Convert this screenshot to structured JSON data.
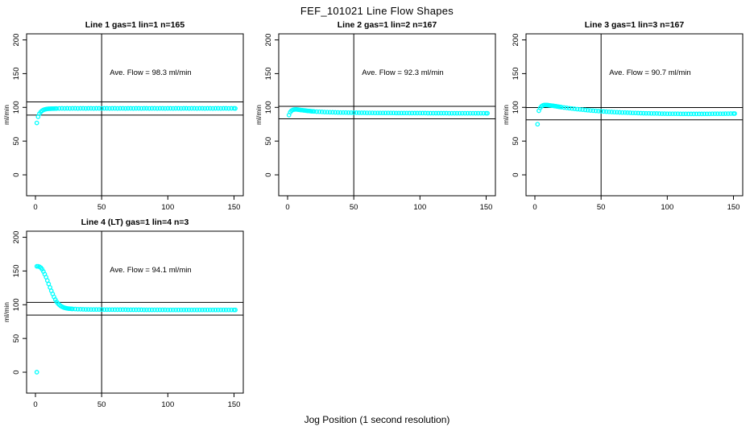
{
  "page_title": "FEF_101021  Line Flow Shapes",
  "x_axis_label": "Jog Position (1 second resolution)",
  "colors": {
    "point_color": "#00ffff",
    "axis_color": "#000000",
    "background": "#ffffff"
  },
  "chart_data": [
    {
      "type": "scatter",
      "id": "line1",
      "title": "Line 1 gas=1 lin=1 n=165",
      "annotation": "Ave. Flow =  98.3  ml/min",
      "ave_flow_ml_min": 98.3,
      "ylabel": "ml/min",
      "x_ticks": [
        0,
        50,
        100,
        150
      ],
      "y_ticks": [
        0,
        50,
        100,
        150,
        200
      ],
      "xlim": [
        -6.7,
        157
      ],
      "ylim": [
        -31,
        209
      ],
      "vline_x": 50,
      "hlines": [
        108.1,
        88.5
      ],
      "grid": false,
      "points": [
        [
          1,
          77
        ],
        [
          2,
          86
        ],
        [
          3,
          90.5
        ],
        [
          4,
          93.2
        ],
        [
          5,
          95
        ],
        [
          6,
          96.2
        ],
        [
          7,
          96.9
        ],
        [
          8,
          97.4
        ],
        [
          9,
          97.7
        ],
        [
          10,
          97.9
        ],
        [
          11,
          98
        ],
        [
          12,
          98.1
        ],
        [
          13,
          98.2
        ],
        [
          14,
          98.2
        ],
        [
          15,
          98.3
        ],
        [
          16,
          98.3
        ],
        [
          18,
          98.4
        ],
        [
          20,
          98.5
        ],
        [
          22,
          98.4
        ],
        [
          24,
          98.5
        ],
        [
          26,
          98.4
        ],
        [
          28,
          98.5
        ],
        [
          30,
          98.5
        ],
        [
          32,
          98.4
        ],
        [
          34,
          98.5
        ],
        [
          36,
          98.5
        ],
        [
          38,
          98.4
        ],
        [
          40,
          98.5
        ],
        [
          42,
          98.5
        ],
        [
          44,
          98.4
        ],
        [
          46,
          98.5
        ],
        [
          48,
          98.5
        ],
        [
          50,
          98.4
        ],
        [
          52,
          98.5
        ],
        [
          54,
          98.5
        ],
        [
          56,
          98.4
        ],
        [
          58,
          98.5
        ],
        [
          60,
          98.5
        ],
        [
          62,
          98.4
        ],
        [
          64,
          98.5
        ],
        [
          66,
          98.5
        ],
        [
          68,
          98.4
        ],
        [
          70,
          98.5
        ],
        [
          72,
          98.5
        ],
        [
          74,
          98.4
        ],
        [
          76,
          98.5
        ],
        [
          78,
          98.5
        ],
        [
          80,
          98.4
        ],
        [
          82,
          98.5
        ],
        [
          84,
          98.5
        ],
        [
          86,
          98.4
        ],
        [
          88,
          98.5
        ],
        [
          90,
          98.5
        ],
        [
          92,
          98.4
        ],
        [
          94,
          98.5
        ],
        [
          96,
          98.5
        ],
        [
          98,
          98.4
        ],
        [
          100,
          98.5
        ],
        [
          102,
          98.5
        ],
        [
          104,
          98.4
        ],
        [
          106,
          98.5
        ],
        [
          108,
          98.5
        ],
        [
          110,
          98.4
        ],
        [
          112,
          98.5
        ],
        [
          114,
          98.5
        ],
        [
          116,
          98.4
        ],
        [
          118,
          98.5
        ],
        [
          120,
          98.5
        ],
        [
          122,
          98.4
        ],
        [
          124,
          98.5
        ],
        [
          126,
          98.5
        ],
        [
          128,
          98.4
        ],
        [
          130,
          98.5
        ],
        [
          132,
          98.5
        ],
        [
          134,
          98.4
        ],
        [
          136,
          98.5
        ],
        [
          138,
          98.5
        ],
        [
          140,
          98.4
        ],
        [
          142,
          98.5
        ],
        [
          144,
          98.5
        ],
        [
          146,
          98.4
        ],
        [
          148,
          98.5
        ],
        [
          150,
          98.5
        ],
        [
          151,
          98.4
        ]
      ]
    },
    {
      "type": "scatter",
      "id": "line2",
      "title": "Line 2 gas=1 lin=2 n=167",
      "annotation": "Ave. Flow =  92.3  ml/min",
      "ave_flow_ml_min": 92.3,
      "ylabel": "ml/min",
      "x_ticks": [
        0,
        50,
        100,
        150
      ],
      "y_ticks": [
        0,
        50,
        100,
        150,
        200
      ],
      "xlim": [
        -6.7,
        157
      ],
      "ylim": [
        -31,
        209
      ],
      "vline_x": 50,
      "hlines": [
        101.5,
        83.1
      ],
      "grid": false,
      "points": [
        [
          1,
          88.5
        ],
        [
          2,
          93
        ],
        [
          3,
          95.2
        ],
        [
          4,
          96.3
        ],
        [
          5,
          96.8
        ],
        [
          6,
          97
        ],
        [
          7,
          96.9
        ],
        [
          8,
          96.7
        ],
        [
          9,
          96.4
        ],
        [
          10,
          96.1
        ],
        [
          11,
          95.9
        ],
        [
          12,
          95.6
        ],
        [
          13,
          95.4
        ],
        [
          14,
          95.1
        ],
        [
          15,
          94.9
        ],
        [
          16,
          94.7
        ],
        [
          17,
          94.5
        ],
        [
          18,
          94.3
        ],
        [
          19,
          94.1
        ],
        [
          20,
          94
        ],
        [
          22,
          93.7
        ],
        [
          24,
          93.5
        ],
        [
          26,
          93.3
        ],
        [
          28,
          93.1
        ],
        [
          30,
          93
        ],
        [
          32,
          92.8
        ],
        [
          34,
          92.7
        ],
        [
          36,
          92.6
        ],
        [
          38,
          92.5
        ],
        [
          40,
          92.4
        ],
        [
          42,
          92.3
        ],
        [
          44,
          92.3
        ],
        [
          46,
          92.2
        ],
        [
          48,
          92.2
        ],
        [
          50,
          92.1
        ],
        [
          52,
          92.1
        ],
        [
          54,
          92
        ],
        [
          56,
          92
        ],
        [
          58,
          92
        ],
        [
          60,
          91.9
        ],
        [
          62,
          91.9
        ],
        [
          64,
          91.9
        ],
        [
          66,
          91.8
        ],
        [
          68,
          91.8
        ],
        [
          70,
          91.8
        ],
        [
          72,
          91.8
        ],
        [
          74,
          91.7
        ],
        [
          76,
          91.7
        ],
        [
          78,
          91.7
        ],
        [
          80,
          91.7
        ],
        [
          82,
          91.6
        ],
        [
          84,
          91.6
        ],
        [
          86,
          91.6
        ],
        [
          88,
          91.6
        ],
        [
          90,
          91.6
        ],
        [
          92,
          91.5
        ],
        [
          94,
          91.5
        ],
        [
          96,
          91.5
        ],
        [
          98,
          91.5
        ],
        [
          100,
          91.5
        ],
        [
          102,
          91.5
        ],
        [
          104,
          91.5
        ],
        [
          106,
          91.4
        ],
        [
          108,
          91.4
        ],
        [
          110,
          91.4
        ],
        [
          112,
          91.4
        ],
        [
          114,
          91.4
        ],
        [
          116,
          91.4
        ],
        [
          118,
          91.4
        ],
        [
          120,
          91.4
        ],
        [
          122,
          91.3
        ],
        [
          124,
          91.3
        ],
        [
          126,
          91.3
        ],
        [
          128,
          91.3
        ],
        [
          130,
          91.3
        ],
        [
          132,
          91.3
        ],
        [
          134,
          91.3
        ],
        [
          136,
          91.3
        ],
        [
          138,
          91.3
        ],
        [
          140,
          91.3
        ],
        [
          142,
          91.3
        ],
        [
          144,
          91.3
        ],
        [
          146,
          91.3
        ],
        [
          148,
          91.3
        ],
        [
          150,
          91.3
        ],
        [
          151,
          91.3
        ]
      ]
    },
    {
      "type": "scatter",
      "id": "line3",
      "title": "Line 3 gas=1 lin=3 n=167",
      "annotation": "Ave. Flow =  90.7  ml/min",
      "ave_flow_ml_min": 90.7,
      "ylabel": "ml/min",
      "x_ticks": [
        0,
        50,
        100,
        150
      ],
      "y_ticks": [
        0,
        50,
        100,
        150,
        200
      ],
      "xlim": [
        -6.7,
        157
      ],
      "ylim": [
        -31,
        209
      ],
      "vline_x": 50,
      "hlines": [
        99.8,
        81.6
      ],
      "grid": false,
      "points": [
        [
          2,
          75
        ],
        [
          3,
          95
        ],
        [
          4,
          99.2
        ],
        [
          5,
          101.5
        ],
        [
          6,
          102.8
        ],
        [
          7,
          103.4
        ],
        [
          8,
          103.6
        ],
        [
          9,
          103.5
        ],
        [
          10,
          103.3
        ],
        [
          11,
          103
        ],
        [
          12,
          102.7
        ],
        [
          13,
          102.5
        ],
        [
          14,
          102.2
        ],
        [
          15,
          101.9
        ],
        [
          16,
          101.6
        ],
        [
          17,
          101.3
        ],
        [
          18,
          101
        ],
        [
          19,
          100.7
        ],
        [
          20,
          100.4
        ],
        [
          22,
          99.8
        ],
        [
          24,
          99.3
        ],
        [
          26,
          98.8
        ],
        [
          28,
          98.3
        ],
        [
          30,
          97.8
        ],
        [
          32,
          97.4
        ],
        [
          34,
          97
        ],
        [
          36,
          96.6
        ],
        [
          38,
          96.2
        ],
        [
          40,
          95.8
        ],
        [
          42,
          95.5
        ],
        [
          44,
          95.1
        ],
        [
          46,
          94.8
        ],
        [
          48,
          94.5
        ],
        [
          50,
          94.2
        ],
        [
          52,
          93.9
        ],
        [
          54,
          93.7
        ],
        [
          56,
          93.4
        ],
        [
          58,
          93.2
        ],
        [
          60,
          93
        ],
        [
          62,
          92.8
        ],
        [
          64,
          92.6
        ],
        [
          66,
          92.4
        ],
        [
          68,
          92.3
        ],
        [
          70,
          92.1
        ],
        [
          72,
          92
        ],
        [
          74,
          91.8
        ],
        [
          76,
          91.7
        ],
        [
          78,
          91.5
        ],
        [
          80,
          91.4
        ],
        [
          82,
          91.3
        ],
        [
          84,
          91.2
        ],
        [
          86,
          91.1
        ],
        [
          88,
          91
        ],
        [
          90,
          90.9
        ],
        [
          92,
          90.9
        ],
        [
          94,
          90.8
        ],
        [
          96,
          90.7
        ],
        [
          98,
          90.7
        ],
        [
          100,
          90.6
        ],
        [
          102,
          90.6
        ],
        [
          104,
          90.5
        ],
        [
          106,
          90.5
        ],
        [
          108,
          90.5
        ],
        [
          110,
          90.4
        ],
        [
          112,
          90.4
        ],
        [
          114,
          90.4
        ],
        [
          116,
          90.3
        ],
        [
          118,
          90.3
        ],
        [
          120,
          90.3
        ],
        [
          122,
          90.3
        ],
        [
          124,
          90.3
        ],
        [
          126,
          90.3
        ],
        [
          128,
          90.4
        ],
        [
          130,
          90.4
        ],
        [
          132,
          90.4
        ],
        [
          134,
          90.5
        ],
        [
          136,
          90.5
        ],
        [
          138,
          90.5
        ],
        [
          140,
          90.6
        ],
        [
          142,
          90.6
        ],
        [
          144,
          90.7
        ],
        [
          146,
          90.7
        ],
        [
          148,
          90.8
        ],
        [
          150,
          90.8
        ],
        [
          151,
          90.8
        ]
      ]
    },
    {
      "type": "scatter",
      "id": "line4",
      "title": "Line 4 (LT) gas=1 lin=4 n=3",
      "annotation": "Ave. Flow =  94.1  ml/min",
      "ave_flow_ml_min": 94.1,
      "ylabel": "ml/min",
      "x_ticks": [
        0,
        50,
        100,
        150
      ],
      "y_ticks": [
        0,
        50,
        100,
        150,
        200
      ],
      "xlim": [
        -6.7,
        157
      ],
      "ylim": [
        -31,
        209
      ],
      "vline_x": 50,
      "hlines": [
        103.5,
        84.7
      ],
      "grid": false,
      "points": [
        [
          1,
          0
        ],
        [
          1,
          157
        ],
        [
          2,
          157
        ],
        [
          3,
          156.4
        ],
        [
          4,
          155
        ],
        [
          5,
          152.6
        ],
        [
          6,
          149.3
        ],
        [
          7,
          145.3
        ],
        [
          8,
          140.8
        ],
        [
          9,
          135.9
        ],
        [
          10,
          130.8
        ],
        [
          11,
          125.7
        ],
        [
          12,
          120.7
        ],
        [
          13,
          116
        ],
        [
          14,
          111.6
        ],
        [
          15,
          107.6
        ],
        [
          16,
          104.4
        ],
        [
          17,
          101.9
        ],
        [
          18,
          99.9
        ],
        [
          19,
          98.3
        ],
        [
          20,
          97.1
        ],
        [
          21,
          96.2
        ],
        [
          22,
          95.5
        ],
        [
          23,
          95
        ],
        [
          24,
          94.6
        ],
        [
          25,
          94.3
        ],
        [
          26,
          94.1
        ],
        [
          27,
          93.9
        ],
        [
          28,
          93.8
        ],
        [
          30,
          93.6
        ],
        [
          32,
          93.4
        ],
        [
          34,
          93.3
        ],
        [
          36,
          93.2
        ],
        [
          38,
          93.1
        ],
        [
          40,
          93.1
        ],
        [
          42,
          93
        ],
        [
          44,
          93
        ],
        [
          46,
          92.9
        ],
        [
          48,
          92.9
        ],
        [
          50,
          92.9
        ],
        [
          52,
          92.8
        ],
        [
          54,
          92.8
        ],
        [
          56,
          92.8
        ],
        [
          58,
          92.8
        ],
        [
          60,
          92.7
        ],
        [
          62,
          92.7
        ],
        [
          64,
          92.7
        ],
        [
          66,
          92.7
        ],
        [
          68,
          92.7
        ],
        [
          70,
          92.6
        ],
        [
          72,
          92.6
        ],
        [
          74,
          92.6
        ],
        [
          76,
          92.6
        ],
        [
          78,
          92.6
        ],
        [
          80,
          92.6
        ],
        [
          82,
          92.5
        ],
        [
          84,
          92.5
        ],
        [
          86,
          92.5
        ],
        [
          88,
          92.5
        ],
        [
          90,
          92.5
        ],
        [
          92,
          92.5
        ],
        [
          94,
          92.5
        ],
        [
          96,
          92.5
        ],
        [
          98,
          92.5
        ],
        [
          100,
          92.4
        ],
        [
          102,
          92.4
        ],
        [
          104,
          92.4
        ],
        [
          106,
          92.4
        ],
        [
          108,
          92.4
        ],
        [
          110,
          92.4
        ],
        [
          112,
          92.4
        ],
        [
          114,
          92.4
        ],
        [
          116,
          92.4
        ],
        [
          118,
          92.4
        ],
        [
          120,
          92.3
        ],
        [
          122,
          92.3
        ],
        [
          124,
          92.3
        ],
        [
          126,
          92.3
        ],
        [
          128,
          92.3
        ],
        [
          130,
          92.3
        ],
        [
          132,
          92.3
        ],
        [
          134,
          92.3
        ],
        [
          136,
          92.3
        ],
        [
          138,
          92.3
        ],
        [
          140,
          92.3
        ],
        [
          142,
          92.3
        ],
        [
          144,
          92.3
        ],
        [
          146,
          92.3
        ],
        [
          148,
          92.3
        ],
        [
          150,
          92.3
        ],
        [
          151,
          92.3
        ]
      ]
    }
  ]
}
